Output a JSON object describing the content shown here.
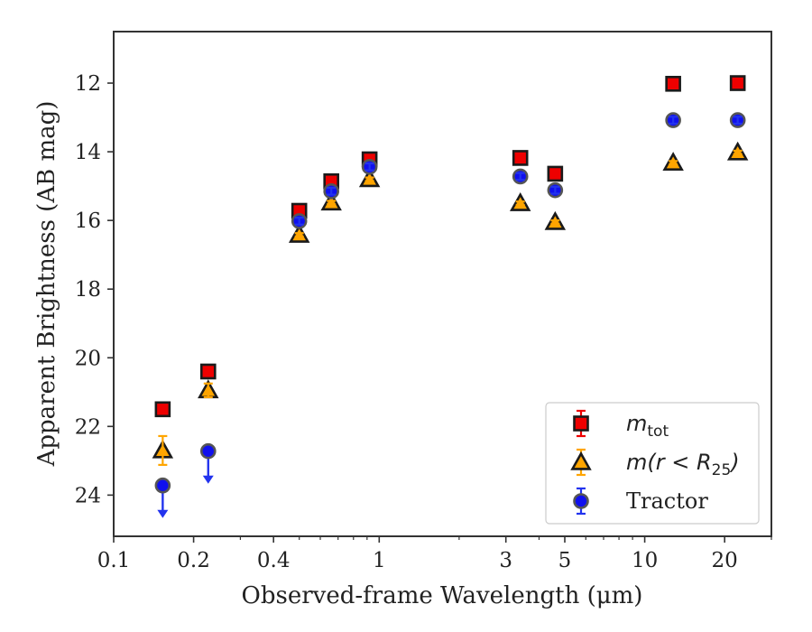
{
  "chart_data": {
    "type": "scatter",
    "xlabel": "Observed-frame Wavelength (μm)",
    "ylabel": "Apparent Brightness (AB mag)",
    "xscale": "log",
    "xlim": [
      0.1,
      30
    ],
    "ylim": [
      25.2,
      10.5
    ],
    "y_inverted": true,
    "x_major_ticks": [
      {
        "value": 0.1,
        "label": "0.1"
      },
      {
        "value": 0.2,
        "label": "0.2"
      },
      {
        "value": 0.4,
        "label": "0.4"
      },
      {
        "value": 1,
        "label": "1"
      },
      {
        "value": 3,
        "label": "3"
      },
      {
        "value": 5,
        "label": "5"
      },
      {
        "value": 10,
        "label": "10"
      },
      {
        "value": 20,
        "label": "20"
      }
    ],
    "x_minor_ticks": [
      0.3,
      0.5,
      0.6,
      0.7,
      0.8,
      0.9,
      2,
      4,
      6,
      7,
      8,
      9,
      30
    ],
    "y_ticks": [
      {
        "value": 12,
        "label": "12"
      },
      {
        "value": 14,
        "label": "14"
      },
      {
        "value": 16,
        "label": "16"
      },
      {
        "value": 18,
        "label": "18"
      },
      {
        "value": 20,
        "label": "20"
      },
      {
        "value": 22,
        "label": "22"
      },
      {
        "value": 24,
        "label": "24"
      }
    ],
    "legend_position": "lower right",
    "series": [
      {
        "key": "mtot",
        "marker": "square",
        "color": "#ee0000",
        "edge": "#1a1a1a",
        "errcolor": "#ee0000",
        "points": [
          {
            "x": 0.153,
            "y": 21.5,
            "err": 0.05
          },
          {
            "x": 0.227,
            "y": 20.4,
            "err": 0.05
          },
          {
            "x": 0.5,
            "y": 15.72,
            "err": 0.1
          },
          {
            "x": 0.66,
            "y": 14.86,
            "err": 0.1
          },
          {
            "x": 0.92,
            "y": 14.22,
            "err": 0.1
          },
          {
            "x": 3.4,
            "y": 14.18,
            "err": 0.1
          },
          {
            "x": 4.6,
            "y": 14.64,
            "err": 0.1
          },
          {
            "x": 12.8,
            "y": 12.02,
            "err": 0.08
          },
          {
            "x": 22.4,
            "y": 12.0,
            "err": 0.08
          }
        ]
      },
      {
        "key": "mr25",
        "marker": "triangle",
        "color": "#ffa500",
        "edge": "#1a1a1a",
        "errcolor": "#ffa500",
        "points": [
          {
            "x": 0.153,
            "y": 22.7,
            "err": 0.42
          },
          {
            "x": 0.227,
            "y": 20.95,
            "err": 0.2
          },
          {
            "x": 0.5,
            "y": 16.42,
            "err": 0.05
          },
          {
            "x": 0.66,
            "y": 15.48,
            "err": 0.05
          },
          {
            "x": 0.92,
            "y": 14.8,
            "err": 0.05
          },
          {
            "x": 3.4,
            "y": 15.5,
            "err": 0.05
          },
          {
            "x": 4.6,
            "y": 16.05,
            "err": 0.05
          },
          {
            "x": 12.8,
            "y": 14.32,
            "err": 0.05
          },
          {
            "x": 22.4,
            "y": 14.02,
            "err": 0.05
          }
        ]
      },
      {
        "key": "tractor",
        "marker": "circle",
        "color": "#1010ee",
        "edge": "#555555",
        "errcolor": "#2233ee",
        "points": [
          {
            "x": 0.153,
            "y": 23.72,
            "upper_limit": true
          },
          {
            "x": 0.227,
            "y": 22.72,
            "upper_limit": true
          },
          {
            "x": 0.5,
            "y": 16.02,
            "err": 0.1
          },
          {
            "x": 0.66,
            "y": 15.15,
            "err": 0.1
          },
          {
            "x": 0.92,
            "y": 14.44,
            "err": 0.1
          },
          {
            "x": 3.4,
            "y": 14.72,
            "err": 0.1
          },
          {
            "x": 4.6,
            "y": 15.12,
            "err": 0.1
          },
          {
            "x": 12.8,
            "y": 13.08,
            "err": 0.1
          },
          {
            "x": 22.4,
            "y": 13.08,
            "err": 0.1
          }
        ]
      }
    ],
    "legend": [
      {
        "key": "mtot",
        "base": "m",
        "sub": "tot",
        "math": true
      },
      {
        "key": "mr25",
        "base": "m(r < R",
        "sub": "25",
        "tail": ")",
        "math": true
      },
      {
        "key": "tractor",
        "base": "Tractor",
        "math": false
      }
    ]
  }
}
